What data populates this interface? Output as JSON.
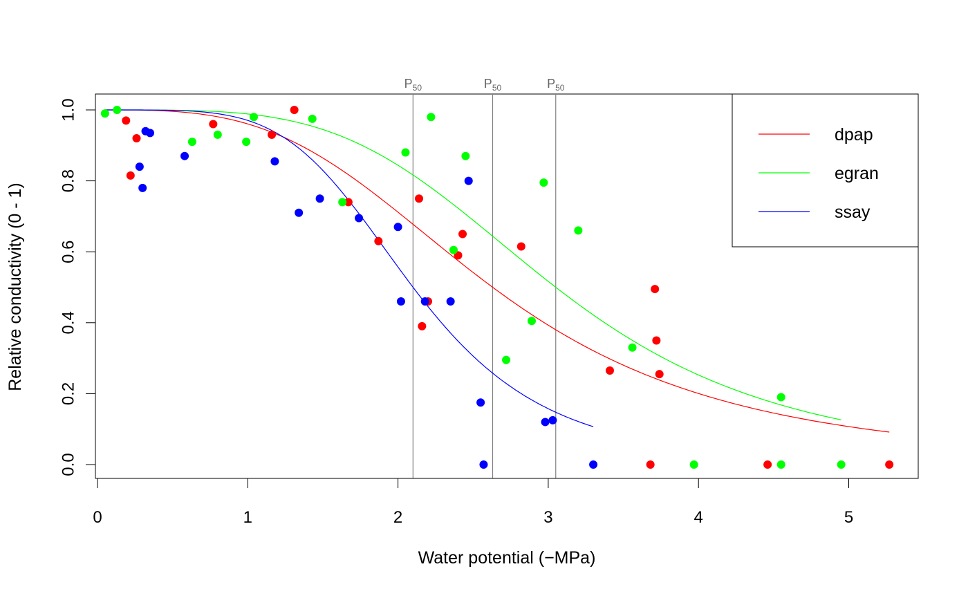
{
  "chart_data": {
    "type": "scatter",
    "xlabel": "Water potential  (−MPa)",
    "ylabel": "Relative conductivity (0 - 1)",
    "xlim": [
      0,
      5.3
    ],
    "ylim": [
      -0.02,
      1.04
    ],
    "x_ticks": [
      0,
      1,
      2,
      3,
      4,
      5
    ],
    "x_tick_labels": [
      "0",
      "1",
      "2",
      "3",
      "4",
      "5"
    ],
    "y_ticks": [
      0.0,
      0.2,
      0.4,
      0.6,
      0.8,
      1.0
    ],
    "y_tick_labels": [
      "0.0",
      "0.2",
      "0.4",
      "0.6",
      "0.8",
      "1.0"
    ],
    "legend_position": "top-right",
    "p50_label": "P",
    "p50_subscript": "50",
    "p50_values": [
      2.1,
      2.63,
      3.05
    ],
    "series": [
      {
        "name": "dpap",
        "color": "#ff0000",
        "points": [
          [
            0.19,
            0.97
          ],
          [
            0.22,
            0.815
          ],
          [
            0.26,
            0.92
          ],
          [
            0.77,
            0.96
          ],
          [
            1.16,
            0.93
          ],
          [
            1.31,
            1.0
          ],
          [
            1.67,
            0.74
          ],
          [
            1.87,
            0.63
          ],
          [
            2.14,
            0.75
          ],
          [
            2.16,
            0.39
          ],
          [
            2.2,
            0.46
          ],
          [
            2.4,
            0.59
          ],
          [
            2.43,
            0.65
          ],
          [
            2.82,
            0.615
          ],
          [
            3.41,
            0.265
          ],
          [
            3.68,
            0.0
          ],
          [
            3.71,
            0.495
          ],
          [
            3.72,
            0.35
          ],
          [
            3.74,
            0.255
          ],
          [
            4.46,
            0.0
          ],
          [
            5.27,
            0.0
          ]
        ],
        "fit_p50": 2.63,
        "fit_slope": 1.05,
        "fit_range": [
          0.05,
          5.27
        ]
      },
      {
        "name": "egran",
        "color": "#00ff00",
        "points": [
          [
            0.05,
            0.99
          ],
          [
            0.13,
            1.0
          ],
          [
            0.63,
            0.91
          ],
          [
            0.8,
            0.93
          ],
          [
            0.99,
            0.91
          ],
          [
            1.04,
            0.98
          ],
          [
            1.43,
            0.975
          ],
          [
            1.63,
            0.74
          ],
          [
            2.05,
            0.88
          ],
          [
            2.22,
            0.98
          ],
          [
            2.37,
            0.605
          ],
          [
            2.45,
            0.87
          ],
          [
            2.72,
            0.295
          ],
          [
            2.89,
            0.405
          ],
          [
            2.97,
            0.795
          ],
          [
            3.2,
            0.66
          ],
          [
            3.56,
            0.33
          ],
          [
            3.97,
            0.0
          ],
          [
            4.55,
            0.19
          ],
          [
            4.55,
            0.0
          ],
          [
            4.95,
            0.0
          ]
        ],
        "fit_p50": 3.05,
        "fit_slope": 1.4,
        "fit_range": [
          0.05,
          4.95
        ]
      },
      {
        "name": "ssay",
        "color": "#0000ff",
        "points": [
          [
            0.28,
            0.84
          ],
          [
            0.3,
            0.78
          ],
          [
            0.32,
            0.94
          ],
          [
            0.35,
            0.935
          ],
          [
            0.58,
            0.87
          ],
          [
            1.18,
            0.855
          ],
          [
            1.34,
            0.71
          ],
          [
            1.48,
            0.75
          ],
          [
            1.74,
            0.695
          ],
          [
            2.0,
            0.67
          ],
          [
            2.02,
            0.46
          ],
          [
            2.18,
            0.46
          ],
          [
            2.35,
            0.46
          ],
          [
            2.47,
            0.8
          ],
          [
            2.55,
            0.175
          ],
          [
            2.57,
            0.0
          ],
          [
            2.98,
            0.12
          ],
          [
            3.03,
            0.125
          ],
          [
            3.3,
            0.0
          ]
        ],
        "fit_p50": 2.1,
        "fit_slope": 1.75,
        "fit_range": [
          0.05,
          3.3
        ]
      }
    ]
  }
}
